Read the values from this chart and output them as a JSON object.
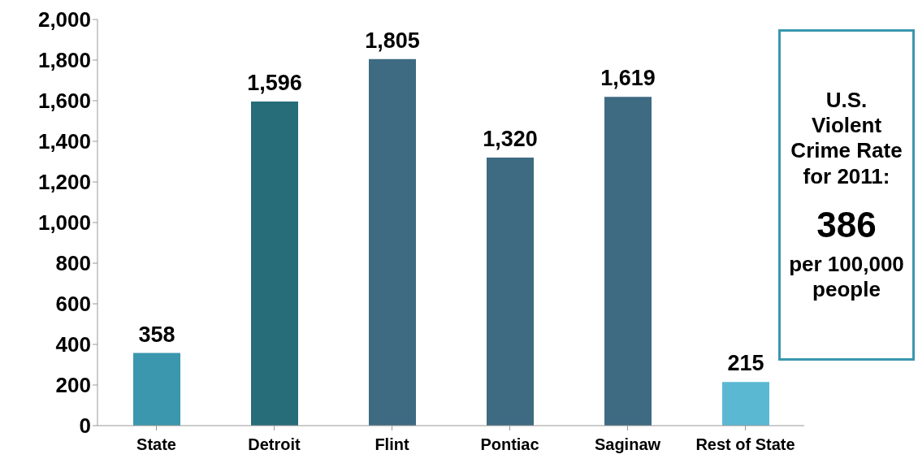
{
  "chart_data": {
    "type": "bar",
    "categories": [
      "State",
      "Detroit",
      "Flint",
      "Pontiac",
      "Saginaw",
      "Rest of State"
    ],
    "values": [
      358,
      1596,
      1805,
      1320,
      1619,
      215
    ],
    "value_labels": [
      "358",
      "1,596",
      "1,805",
      "1,320",
      "1,619",
      "215"
    ],
    "colors": [
      "#3a97ae",
      "#266c79",
      "#3e6a82",
      "#3e6a82",
      "#3e6a82",
      "#5bb8d3"
    ],
    "ylim": [
      0,
      2000
    ],
    "yticks": [
      0,
      200,
      400,
      600,
      800,
      {
        "value": 1000,
        "label": "1,000"
      },
      {
        "value": 1200,
        "label": "1,200"
      },
      {
        "value": 1400,
        "label": "1,400"
      },
      {
        "value": 1600,
        "label": "1,600"
      },
      {
        "value": 1800,
        "label": "1,800"
      },
      {
        "value": 2000,
        "label": "2,000"
      }
    ],
    "annotations": [
      "U.S. Violent Crime Rate for 2011:",
      "386",
      "per 100,000 people"
    ]
  }
}
